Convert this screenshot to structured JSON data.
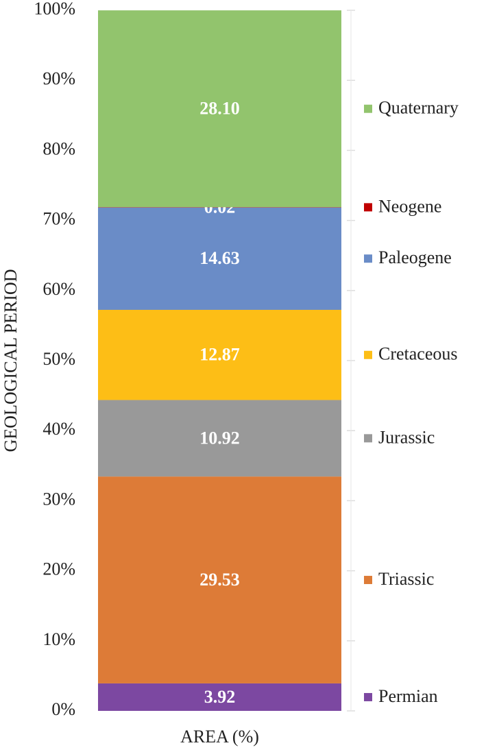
{
  "chart_data": {
    "type": "stacked_bar",
    "ylabel": "GEOLOGICAL PERIOD",
    "categories": [
      "AREA (%)"
    ],
    "series": [
      {
        "name": "Permian",
        "color": "#7c48a1",
        "values": [
          3.92
        ]
      },
      {
        "name": "Triassic",
        "color": "#dd7b37",
        "values": [
          29.53
        ]
      },
      {
        "name": "Jurassic",
        "color": "#999999",
        "values": [
          10.92
        ]
      },
      {
        "name": "Cretaceous",
        "color": "#fdbe16",
        "values": [
          12.87
        ]
      },
      {
        "name": "Paleogene",
        "color": "#6a8cc7",
        "values": [
          14.63
        ]
      },
      {
        "name": "Neogene",
        "color": "#c00000",
        "values": [
          0.02
        ]
      },
      {
        "name": "Quaternary",
        "color": "#92c46d",
        "values": [
          28.1
        ],
        "value_labels": [
          "28.10"
        ]
      }
    ],
    "ylim": [
      0,
      100
    ],
    "yticks": [
      {
        "value": 0,
        "label": "0%"
      },
      {
        "value": 10,
        "label": "10%"
      },
      {
        "value": 20,
        "label": "20%"
      },
      {
        "value": 30,
        "label": "30%"
      },
      {
        "value": 40,
        "label": "40%"
      },
      {
        "value": 50,
        "label": "50%"
      },
      {
        "value": 60,
        "label": "60%"
      },
      {
        "value": 70,
        "label": "70%"
      },
      {
        "value": 80,
        "label": "80%"
      },
      {
        "value": 90,
        "label": "90%"
      },
      {
        "value": 100,
        "label": "100%"
      }
    ]
  }
}
